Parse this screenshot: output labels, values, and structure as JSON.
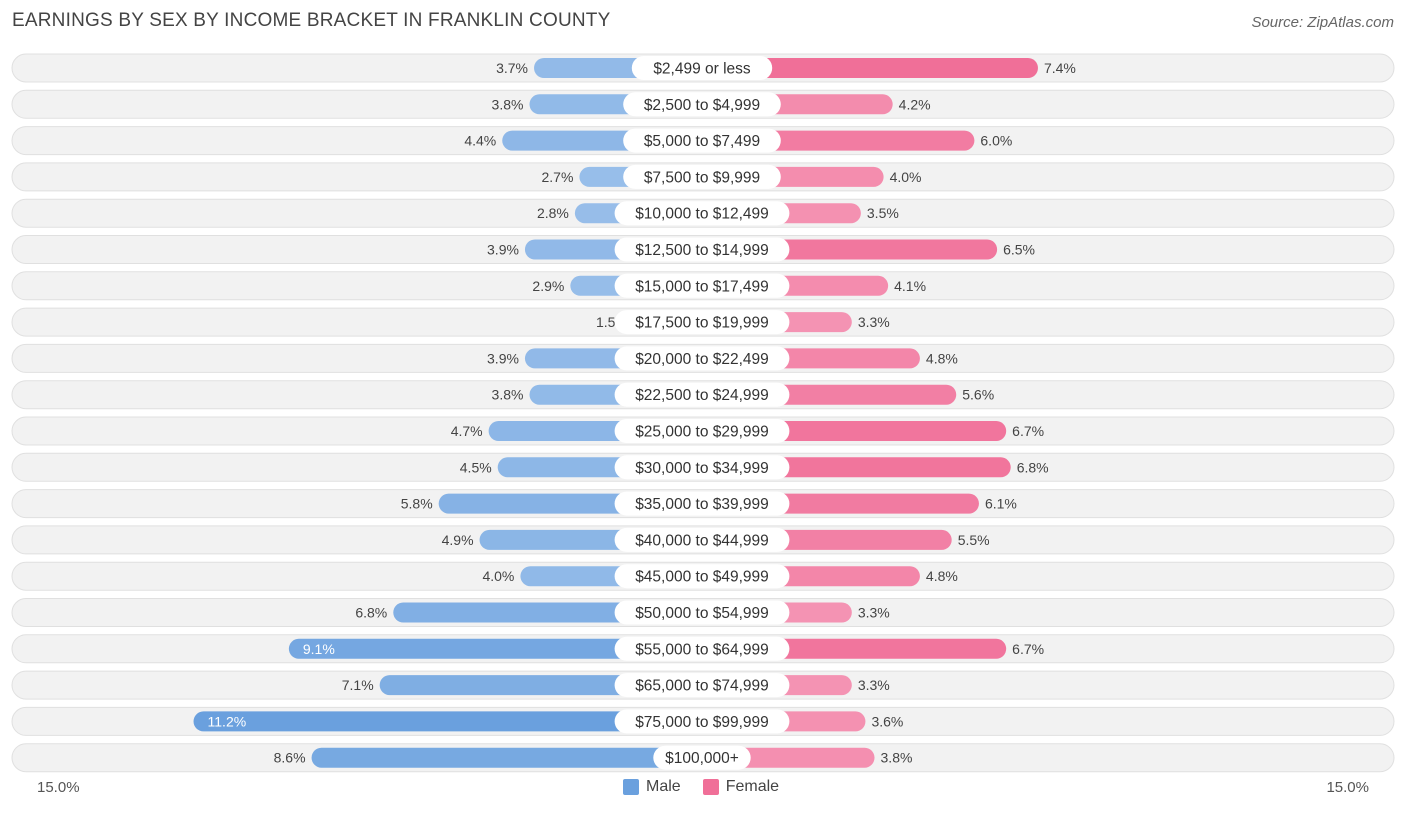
{
  "header": {
    "title": "EARNINGS BY SEX BY INCOME BRACKET IN FRANKLIN COUNTY",
    "source": "Source: ZipAtlas.com"
  },
  "axis": {
    "left_label": "15.0%",
    "right_label": "15.0%"
  },
  "legend": {
    "male_label": "Male",
    "female_label": "Female"
  },
  "colors": {
    "male_dark": "#6aa0de",
    "male_light": "#a9c9ee",
    "female_dark": "#f06f98",
    "female_light": "#f7a9c3",
    "row_bg": "#f2f2f2",
    "row_border": "#e0e0e0"
  },
  "chart_data": {
    "type": "bar",
    "orientation": "horizontal-diverging",
    "title": "EARNINGS BY SEX BY INCOME BRACKET IN FRANKLIN COUNTY",
    "xlim": [
      -15.0,
      15.0
    ],
    "unit": "%",
    "categories": [
      "$2,499 or less",
      "$2,500 to $4,999",
      "$5,000 to $7,499",
      "$7,500 to $9,999",
      "$10,000 to $12,499",
      "$12,500 to $14,999",
      "$15,000 to $17,499",
      "$17,500 to $19,999",
      "$20,000 to $22,499",
      "$22,500 to $24,999",
      "$25,000 to $29,999",
      "$30,000 to $34,999",
      "$35,000 to $39,999",
      "$40,000 to $44,999",
      "$45,000 to $49,999",
      "$50,000 to $54,999",
      "$55,000 to $64,999",
      "$65,000 to $74,999",
      "$75,000 to $99,999",
      "$100,000+"
    ],
    "series": [
      {
        "name": "Male",
        "values": [
          3.7,
          3.8,
          4.4,
          2.7,
          2.8,
          3.9,
          2.9,
          1.5,
          3.9,
          3.8,
          4.7,
          4.5,
          5.8,
          4.9,
          4.0,
          6.8,
          9.1,
          7.1,
          11.2,
          8.6
        ]
      },
      {
        "name": "Female",
        "values": [
          7.4,
          4.2,
          6.0,
          4.0,
          3.5,
          6.5,
          4.1,
          3.3,
          4.8,
          5.6,
          6.7,
          6.8,
          6.1,
          5.5,
          4.8,
          3.3,
          6.7,
          3.3,
          3.6,
          3.8
        ]
      }
    ]
  }
}
